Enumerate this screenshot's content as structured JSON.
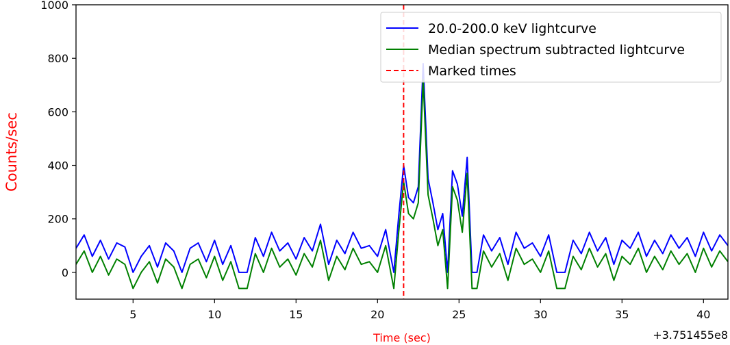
{
  "chart_data": {
    "type": "line",
    "xlabel": "Time (sec)",
    "ylabel": "Counts/sec",
    "x_offset_label": "+3.751455e8",
    "xlim": [
      1.5,
      41.5
    ],
    "ylim": [
      -100,
      1000
    ],
    "xticks": [
      5,
      10,
      15,
      20,
      25,
      30,
      35,
      40
    ],
    "yticks": [
      0,
      200,
      400,
      600,
      800,
      1000
    ],
    "grid": false,
    "legend_position": "top-right",
    "colors": {
      "blue": "#0000ff",
      "green": "#008000",
      "marker": "#ff0000",
      "ylabel": "#ff0000",
      "xlabel": "#ff0000"
    },
    "marked_times": [
      21.6
    ],
    "series": [
      {
        "name": "20.0-200.0 keV lightcurve",
        "color": "#0000ff",
        "x": [
          1.5,
          2,
          2.5,
          3,
          3.5,
          4,
          4.5,
          5,
          5.5,
          6,
          6.5,
          7,
          7.5,
          8,
          8.5,
          9,
          9.5,
          10,
          10.5,
          11,
          11.5,
          12,
          12.5,
          13,
          13.5,
          14,
          14.5,
          15,
          15.5,
          16,
          16.5,
          17,
          17.5,
          18,
          18.5,
          19,
          19.5,
          20,
          20.5,
          21,
          21.3,
          21.6,
          21.9,
          22.2,
          22.5,
          22.8,
          23.1,
          23.4,
          23.7,
          24,
          24.3,
          24.6,
          24.9,
          25.2,
          25.5,
          25.8,
          26.1,
          26.5,
          27,
          27.5,
          28,
          28.5,
          29,
          29.5,
          30,
          30.5,
          31,
          31.5,
          32,
          32.5,
          33,
          33.5,
          34,
          34.5,
          35,
          35.5,
          36,
          36.5,
          37,
          37.5,
          38,
          38.5,
          39,
          39.5,
          40,
          40.5,
          41,
          41.5
        ],
        "values": [
          90,
          140,
          60,
          120,
          50,
          110,
          95,
          0,
          60,
          100,
          20,
          110,
          80,
          0,
          90,
          110,
          40,
          120,
          30,
          100,
          0,
          0,
          130,
          60,
          150,
          80,
          110,
          50,
          130,
          80,
          180,
          30,
          120,
          70,
          150,
          90,
          100,
          60,
          160,
          0,
          210,
          400,
          280,
          260,
          320,
          780,
          350,
          260,
          160,
          220,
          0,
          380,
          330,
          210,
          430,
          0,
          0,
          140,
          80,
          130,
          30,
          150,
          90,
          110,
          60,
          140,
          0,
          0,
          120,
          70,
          150,
          80,
          130,
          30,
          120,
          90,
          150,
          60,
          120,
          70,
          140,
          90,
          130,
          60,
          150,
          80,
          140,
          100
        ]
      },
      {
        "name": "Median spectrum subtracted lightcurve",
        "color": "#008000",
        "x": [
          1.5,
          2,
          2.5,
          3,
          3.5,
          4,
          4.5,
          5,
          5.5,
          6,
          6.5,
          7,
          7.5,
          8,
          8.5,
          9,
          9.5,
          10,
          10.5,
          11,
          11.5,
          12,
          12.5,
          13,
          13.5,
          14,
          14.5,
          15,
          15.5,
          16,
          16.5,
          17,
          17.5,
          18,
          18.5,
          19,
          19.5,
          20,
          20.5,
          21,
          21.3,
          21.6,
          21.9,
          22.2,
          22.5,
          22.8,
          23.1,
          23.4,
          23.7,
          24,
          24.3,
          24.6,
          24.9,
          25.2,
          25.5,
          25.8,
          26.1,
          26.5,
          27,
          27.5,
          28,
          28.5,
          29,
          29.5,
          30,
          30.5,
          31,
          31.5,
          32,
          32.5,
          33,
          33.5,
          34,
          34.5,
          35,
          35.5,
          36,
          36.5,
          37,
          37.5,
          38,
          38.5,
          39,
          39.5,
          40,
          40.5,
          41,
          41.5
        ],
        "values": [
          30,
          80,
          0,
          60,
          -10,
          50,
          30,
          -60,
          0,
          40,
          -40,
          50,
          20,
          -60,
          30,
          50,
          -20,
          60,
          -30,
          40,
          -60,
          -60,
          70,
          0,
          90,
          20,
          50,
          -10,
          70,
          20,
          120,
          -30,
          60,
          10,
          90,
          30,
          40,
          0,
          100,
          -60,
          150,
          340,
          220,
          200,
          260,
          720,
          290,
          200,
          100,
          160,
          -60,
          320,
          270,
          150,
          370,
          -60,
          -60,
          80,
          20,
          70,
          -30,
          90,
          30,
          50,
          0,
          80,
          -60,
          -60,
          60,
          10,
          90,
          20,
          70,
          -30,
          60,
          30,
          90,
          0,
          60,
          10,
          80,
          30,
          70,
          0,
          90,
          20,
          80,
          40
        ]
      },
      {
        "name": "Marked times",
        "color": "#ff0000",
        "style": "dashed"
      }
    ]
  }
}
